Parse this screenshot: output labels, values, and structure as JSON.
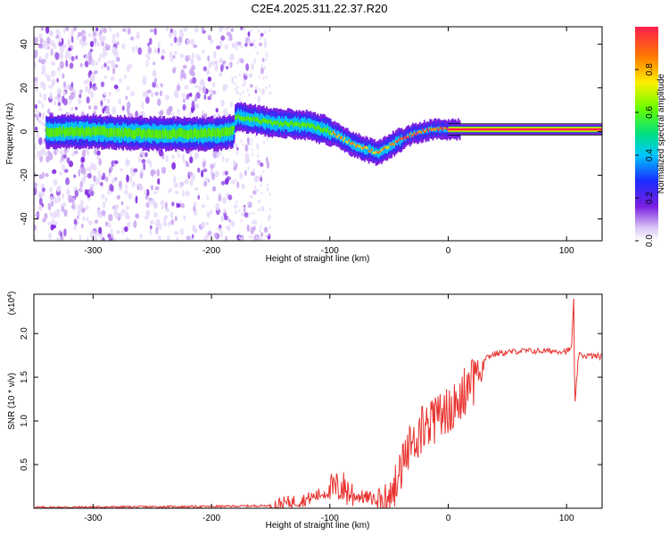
{
  "title": "C2E4.2025.311.22.37.R20",
  "chart_data": [
    {
      "type": "heatmap",
      "xlabel": "Height of straight line (km)",
      "ylabel": "Frequency (Hz)",
      "xlim": [
        -350,
        130
      ],
      "ylim": [
        -50,
        48
      ],
      "x_ticks": [
        -300,
        -200,
        -100,
        0,
        100
      ],
      "y_ticks": [
        -40,
        -20,
        0,
        20,
        40
      ],
      "colorbar": {
        "label": "Normalized spectral amplitude",
        "range": [
          0,
          1
        ],
        "ticks": [
          "0.0",
          "0.2",
          "0.4",
          "0.6",
          "0.8"
        ]
      },
      "centerline": [
        {
          "x": -330,
          "y": 0
        },
        {
          "x": -300,
          "y": 0
        },
        {
          "x": -250,
          "y": -1
        },
        {
          "x": -200,
          "y": -1
        },
        {
          "x": -182,
          "y": 0
        },
        {
          "x": -180,
          "y": 7
        },
        {
          "x": -150,
          "y": 4
        },
        {
          "x": -120,
          "y": 3
        },
        {
          "x": -100,
          "y": 0
        },
        {
          "x": -80,
          "y": -6
        },
        {
          "x": -60,
          "y": -10
        },
        {
          "x": -45,
          "y": -5
        },
        {
          "x": -30,
          "y": -1
        },
        {
          "x": -15,
          "y": 1
        },
        {
          "x": 0,
          "y": 1
        },
        {
          "x": 130,
          "y": 1
        }
      ]
    },
    {
      "type": "line",
      "xlabel": "Height of straight line (km)",
      "ylabel": "SNR (10 * v/v)",
      "y_multiplier_label": "(x10",
      "y_multiplier_exp": "4",
      "xlim": [
        -350,
        130
      ],
      "ylim": [
        0,
        2.45
      ],
      "x_ticks": [
        -300,
        -200,
        -100,
        0,
        100
      ],
      "y_ticks": [
        "0.5",
        "1.0",
        "1.5",
        "2.0"
      ],
      "color": "#e8322e",
      "envelope": [
        {
          "x": -350,
          "y": 0.01
        },
        {
          "x": -200,
          "y": 0.02
        },
        {
          "x": -150,
          "y": 0.03
        },
        {
          "x": -120,
          "y": 0.1
        },
        {
          "x": -100,
          "y": 0.2
        },
        {
          "x": -90,
          "y": 0.25
        },
        {
          "x": -80,
          "y": 0.15
        },
        {
          "x": -60,
          "y": 0.1
        },
        {
          "x": -50,
          "y": 0.25
        },
        {
          "x": -40,
          "y": 0.6
        },
        {
          "x": -30,
          "y": 0.95
        },
        {
          "x": -20,
          "y": 1.1
        },
        {
          "x": -10,
          "y": 1.2
        },
        {
          "x": 0,
          "y": 1.3
        },
        {
          "x": 10,
          "y": 1.45
        },
        {
          "x": 20,
          "y": 1.6
        },
        {
          "x": 30,
          "y": 1.72
        },
        {
          "x": 40,
          "y": 1.77
        },
        {
          "x": 60,
          "y": 1.8
        },
        {
          "x": 80,
          "y": 1.8
        },
        {
          "x": 100,
          "y": 1.8
        },
        {
          "x": 104,
          "y": 1.82
        },
        {
          "x": 106,
          "y": 2.4
        },
        {
          "x": 107,
          "y": 1.15
        },
        {
          "x": 110,
          "y": 1.75
        },
        {
          "x": 130,
          "y": 1.74
        }
      ]
    }
  ]
}
